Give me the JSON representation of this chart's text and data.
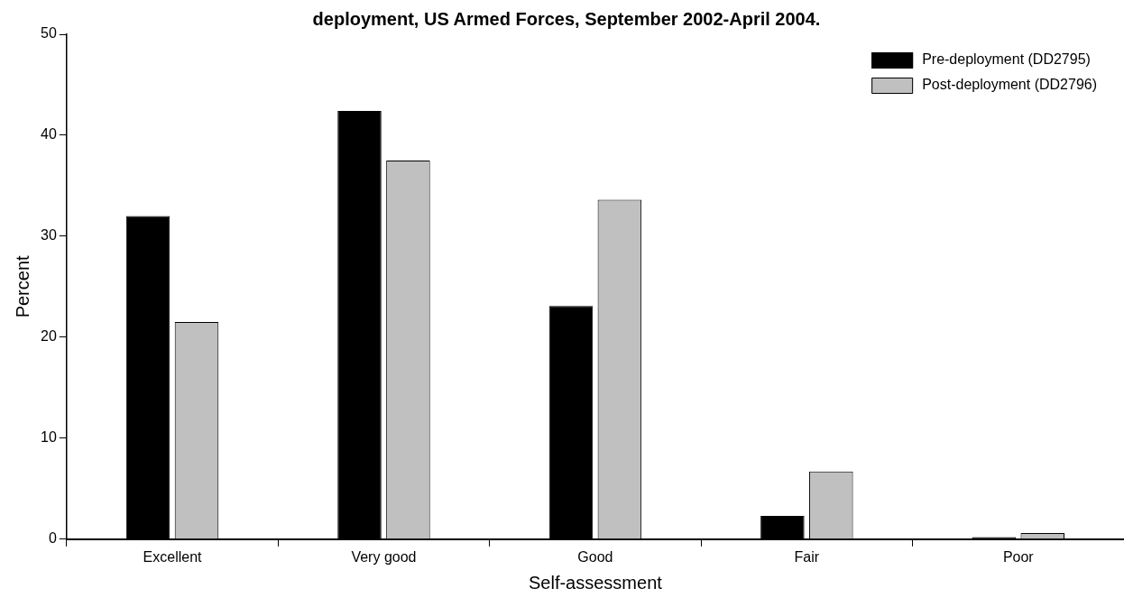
{
  "chart_data": {
    "type": "bar",
    "title": "deployment, US Armed Forces, September 2002-April 2004.",
    "xlabel": "Self-assessment",
    "ylabel": "Percent",
    "categories": [
      "Excellent",
      "Very good",
      "Good",
      "Fair",
      "Poor"
    ],
    "series": [
      {
        "name": "Pre-deployment (DD2795)",
        "color": "#000000",
        "values": [
          32.0,
          42.4,
          23.1,
          2.3,
          0.2
        ]
      },
      {
        "name": "Post-deployment (DD2796)",
        "color": "#c0c0c0",
        "values": [
          21.5,
          37.5,
          33.6,
          6.7,
          0.6
        ]
      }
    ],
    "ylim": [
      0,
      50
    ],
    "yticks": [
      0,
      10,
      20,
      30,
      40,
      50
    ],
    "legend": "top right"
  }
}
